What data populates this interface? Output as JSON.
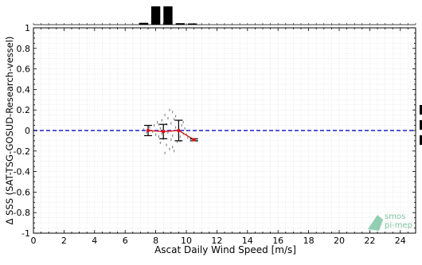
{
  "chart_data": {
    "type": "scatter",
    "xlabel": "Ascat Daily Wind Speed [m/s]",
    "ylabel": "Δ SSS (SAT-TSG-GOSUD-Research-vessel)",
    "xlim": [
      0,
      25
    ],
    "ylim": [
      -1,
      1
    ],
    "x_ticks": [
      0,
      2,
      4,
      6,
      8,
      10,
      12,
      14,
      16,
      18,
      20,
      22,
      24
    ],
    "y_ticks": [
      -1,
      -0.8,
      -0.6,
      -0.4,
      -0.2,
      0,
      0.2,
      0.4,
      0.6,
      0.8,
      1
    ],
    "grid": true,
    "reference_line": {
      "y": 0,
      "color": "#1f1fcc",
      "style": "dashed"
    },
    "histogram": {
      "bin_edges": [
        6.8,
        7.6,
        8.4,
        9.2,
        10.0,
        10.8
      ],
      "counts": [
        0.1,
        1.0,
        1.0,
        0.08,
        0.0
      ],
      "counts_b": [
        0,
        0,
        0,
        0,
        0.03
      ]
    },
    "binned_means": {
      "color": "#dd1111",
      "x": [
        7.5,
        8.5,
        9.5,
        10.5
      ],
      "y": [
        0.0,
        -0.01,
        0.0,
        -0.09
      ],
      "err": [
        0.05,
        0.07,
        0.1,
        0.01
      ]
    },
    "scatter_points": {
      "color": "#888888",
      "x": [
        7.2,
        7.4,
        7.6,
        7.8,
        7.9,
        8.0,
        8.1,
        8.2,
        8.3,
        8.3,
        8.4,
        8.5,
        8.5,
        8.6,
        8.7,
        8.7,
        8.8,
        8.8,
        8.9,
        9.0,
        9.0,
        9.1,
        9.1,
        9.2,
        9.2,
        9.3,
        9.4,
        9.5,
        9.6,
        9.7,
        9.8,
        9.9,
        10.0,
        10.1,
        10.3,
        10.5,
        10.7,
        8.6,
        8.9,
        9.1,
        9.3,
        8.2,
        8.4,
        9.6,
        9.8
      ],
      "y": [
        0.01,
        -0.02,
        0.03,
        -0.01,
        0.05,
        -0.04,
        0.08,
        -0.06,
        0.02,
        -0.12,
        0.1,
        -0.08,
        0.04,
        0.15,
        -0.14,
        0.06,
        -0.02,
        0.12,
        -0.18,
        0.07,
        -0.09,
        0.18,
        -0.05,
        0.11,
        -0.2,
        0.03,
        -0.11,
        0.09,
        -0.06,
        0.05,
        -0.03,
        0.02,
        -0.04,
        -0.07,
        -0.08,
        -0.09,
        -0.1,
        -0.22,
        0.2,
        -0.16,
        0.14,
        0.06,
        -0.03,
        -0.1,
        0.08
      ]
    },
    "watermark": {
      "line1": "smos",
      "line2": "pi-mep"
    }
  },
  "colors": {
    "axis": "#000000",
    "grid": "#e4e4e4",
    "histogram": "#000000",
    "logo": "#7fc6a4"
  }
}
